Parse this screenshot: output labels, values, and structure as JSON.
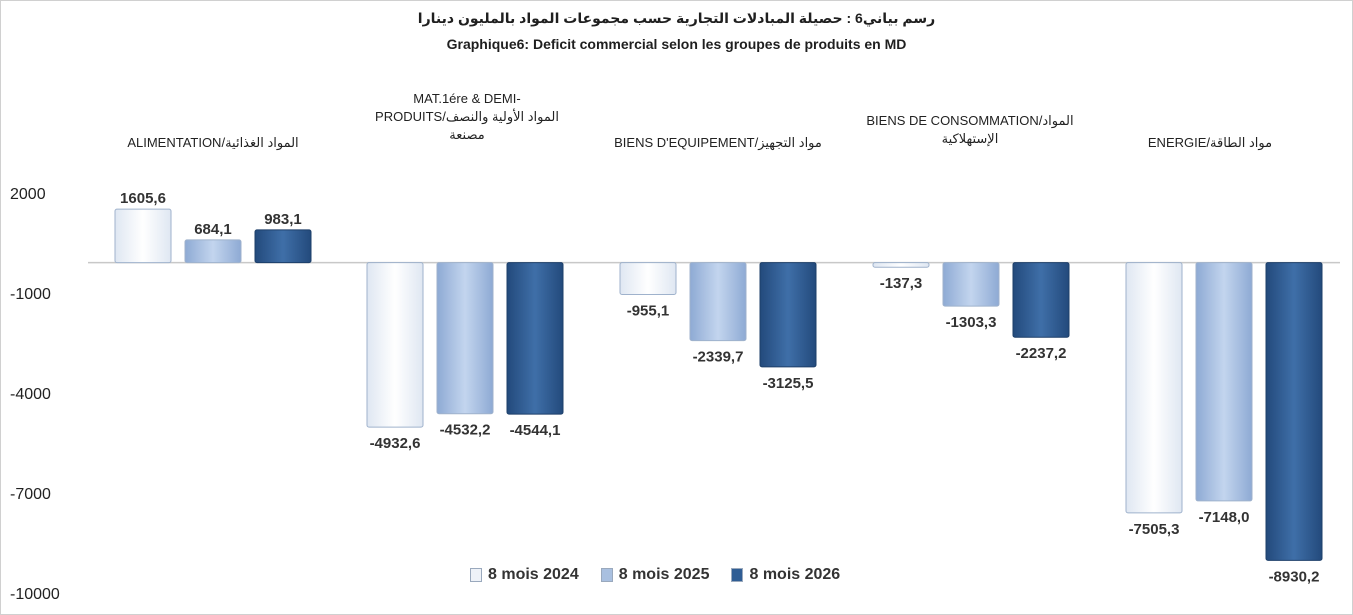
{
  "chart_data": {
    "type": "bar",
    "title_ar": "رسم بياني6 : حصيلة المبادلات التجارية حسب مجموعات المواد بالمليون دينارا",
    "title": "Graphique6: Deficit commercial selon les groupes de produits en MD",
    "categories": [
      [
        "ALIMENTATION/المواد الغذائية"
      ],
      [
        "MAT.1ére & DEMI-",
        "PRODUITS/المواد الأولية والنصف",
        "مصنعة"
      ],
      [
        "BIENS D'EQUIPEMENT/مواد التجهيز"
      ],
      [
        "BIENS DE CONSOMMATION/المواد",
        "الإستهلاكية"
      ],
      [
        "ENERGIE/مواد الطاقة"
      ]
    ],
    "series": [
      {
        "name": "8 mois 2024",
        "color": "#eef2f8",
        "values": [
          1605.6,
          -4932.6,
          -955.1,
          -137.3,
          -7505.3
        ],
        "labels": [
          "1605,6",
          "-4932,6",
          "-955,1",
          "-137,3",
          "-7505,3"
        ]
      },
      {
        "name": "8 mois 2025",
        "color": "#a9c0e0",
        "values": [
          684.1,
          -4532.2,
          -2339.7,
          -1303.3,
          -7148.0
        ],
        "labels": [
          "684,1",
          "-4532,2",
          "-2339,7",
          "-1303,3",
          "-7148,0"
        ]
      },
      {
        "name": "8 mois 2026",
        "color": "#2f5d94",
        "values": [
          983.1,
          -4544.1,
          -3125.5,
          -2237.2,
          -8930.2
        ],
        "labels": [
          "983,1",
          "-4544,1",
          "-3125,5",
          "-2237,2",
          "-8930,2"
        ]
      }
    ],
    "yticks": [
      "2000",
      "-1000",
      "-4000",
      "-7000",
      "-10000"
    ],
    "ylim": [
      -10000,
      2000
    ],
    "legend_position": "bottom"
  }
}
